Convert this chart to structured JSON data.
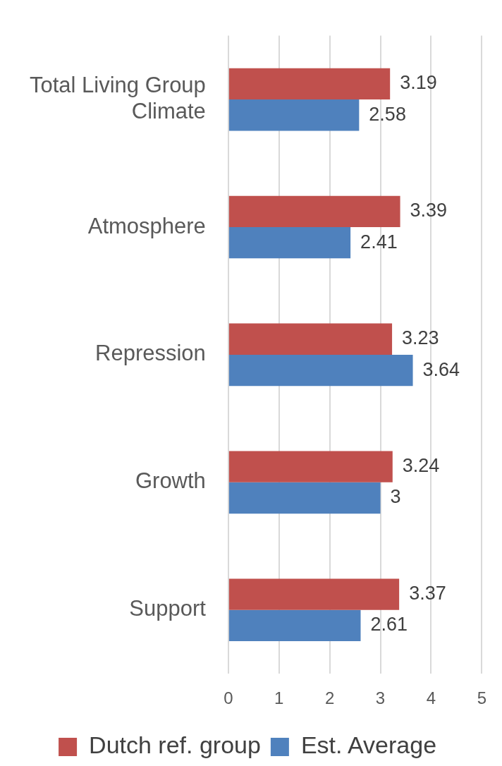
{
  "chart_data": {
    "type": "bar",
    "orientation": "horizontal",
    "categories": [
      "Total Living Group Climate",
      "Atmosphere",
      "Repression",
      "Growth",
      "Support"
    ],
    "series": [
      {
        "name": "Dutch ref. group",
        "color": "#c0504d",
        "values": [
          3.19,
          3.39,
          3.23,
          3.24,
          3.37
        ]
      },
      {
        "name": "Est. Average",
        "color": "#4f81bd",
        "values": [
          2.58,
          2.41,
          3.64,
          3,
          2.61
        ]
      }
    ],
    "xlim": [
      0,
      5
    ],
    "xticks": [
      0,
      1,
      2,
      3,
      4,
      5
    ],
    "grid": "x",
    "legend": "bottom",
    "data_labels": true
  }
}
